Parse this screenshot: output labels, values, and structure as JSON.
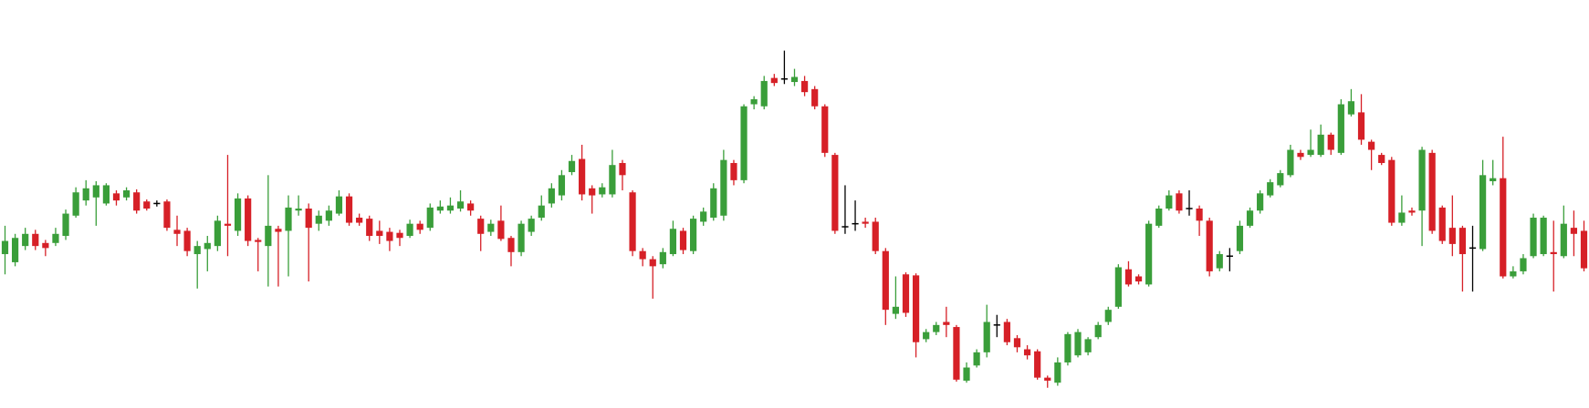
{
  "chart_data": {
    "type": "candlestick",
    "up_color": "#3a9e3a",
    "down_color": "#d62027",
    "flat_color": "#000000",
    "ylim": [
      0,
      403
    ],
    "open": [
      152,
      144,
      160,
      172,
      163,
      163,
      170,
      190,
      205,
      208,
      202,
      212,
      208,
      213,
      204,
      202,
      204,
      176,
      175,
      152,
      157,
      160,
      182,
      175,
      207,
      166,
      160,
      177,
      175,
      195,
      197,
      182,
      185,
      192,
      209,
      188,
      187,
      175,
      174,
      173,
      170,
      182,
      178,
      195,
      195,
      197,
      202,
      187,
      174,
      185,
      168,
      154,
      174,
      188,
      202,
      210,
      233,
      246,
      217,
      211,
      211,
      242,
      213,
      155,
      147,
      142,
      152,
      175,
      155,
      184,
      188,
      190,
      242,
      225,
      300,
      298,
      326,
      325,
      322,
      323,
      315,
      298,
      250,
      179,
      182,
      184,
      184,
      155,
      93,
      132,
      131,
      68,
      75,
      85,
      80,
      27,
      42,
      55,
      82,
      85,
      69,
      58,
      56,
      30,
      25,
      45,
      52,
      55,
      70,
      85,
      100,
      137,
      130,
      122,
      180,
      197,
      212,
      197,
      197,
      185,
      138,
      150,
      155,
      180,
      195,
      210,
      220,
      230,
      252,
      250,
      250,
      270,
      252,
      290,
      292,
      263,
      250,
      245,
      183,
      195,
      195,
      252,
      198,
      178,
      178,
      158,
      157,
      224,
      227,
      130,
      135,
      150,
      152,
      154,
      150,
      178,
      175
    ],
    "high": [
      180,
      172,
      178,
      176,
      166,
      178,
      196,
      218,
      225,
      224,
      222,
      215,
      218,
      216,
      206,
      205,
      206,
      190,
      178,
      165,
      170,
      190,
      250,
      212,
      210,
      168,
      230,
      180,
      210,
      210,
      202,
      195,
      200,
      215,
      212,
      192,
      190,
      185,
      178,
      176,
      186,
      185,
      202,
      205,
      208,
      215,
      205,
      190,
      186,
      200,
      170,
      185,
      190,
      210,
      222,
      235,
      250,
      260,
      220,
      222,
      255,
      245,
      215,
      158,
      150,
      158,
      185,
      178,
      190,
      198,
      222,
      255,
      245,
      300,
      308,
      328,
      330,
      353,
      335,
      328,
      318,
      300,
      252,
      220,
      205,
      188,
      188,
      158,
      130,
      134,
      133,
      78,
      85,
      100,
      82,
      45,
      58,
      102,
      92,
      88,
      72,
      62,
      58,
      32,
      50,
      75,
      78,
      70,
      85,
      100,
      142,
      145,
      132,
      185,
      200,
      215,
      215,
      215,
      200,
      188,
      155,
      158,
      185,
      198,
      215,
      226,
      235,
      260,
      255,
      275,
      280,
      272,
      305,
      315,
      310,
      265,
      252,
      248,
      210,
      198,
      258,
      255,
      200,
      210,
      180,
      180,
      245,
      245,
      268,
      140,
      152,
      192,
      190,
      185,
      200,
      195,
      185
    ],
    "low": [
      132,
      140,
      156,
      156,
      150,
      160,
      166,
      188,
      200,
      180,
      200,
      200,
      205,
      192,
      195,
      199,
      175,
      160,
      150,
      118,
      135,
      155,
      150,
      170,
      160,
      135,
      120,
      120,
      130,
      190,
      125,
      175,
      180,
      190,
      180,
      180,
      165,
      162,
      155,
      160,
      168,
      172,
      175,
      192,
      192,
      194,
      190,
      155,
      170,
      165,
      140,
      150,
      170,
      185,
      198,
      205,
      230,
      205,
      192,
      208,
      208,
      215,
      150,
      140,
      108,
      138,
      150,
      152,
      152,
      180,
      185,
      185,
      220,
      222,
      295,
      295,
      318,
      320,
      318,
      308,
      295,
      248,
      172,
      172,
      175,
      178,
      152,
      82,
      88,
      90,
      50,
      65,
      72,
      70,
      26,
      25,
      40,
      50,
      70,
      62,
      55,
      48,
      28,
      20,
      22,
      42,
      50,
      52,
      68,
      82,
      98,
      120,
      122,
      120,
      178,
      195,
      192,
      190,
      170,
      130,
      135,
      135,
      152,
      178,
      192,
      208,
      218,
      228,
      245,
      248,
      248,
      250,
      250,
      288,
      260,
      235,
      240,
      180,
      180,
      190,
      160,
      172,
      162,
      150,
      115,
      115,
      155,
      220,
      128,
      128,
      132,
      148,
      150,
      115,
      148,
      150,
      135
    ],
    "close": [
      165,
      168,
      172,
      160,
      158,
      172,
      192,
      213,
      217,
      220,
      220,
      205,
      215,
      195,
      197,
      202,
      178,
      172,
      155,
      160,
      163,
      185,
      180,
      207,
      165,
      164,
      180,
      174,
      198,
      197,
      178,
      190,
      195,
      209,
      183,
      183,
      170,
      170,
      165,
      168,
      182,
      176,
      198,
      199,
      200,
      204,
      195,
      172,
      182,
      167,
      154,
      182,
      187,
      200,
      217,
      230,
      244,
      211,
      210,
      218,
      240,
      230,
      155,
      147,
      140,
      154,
      177,
      156,
      187,
      194,
      217,
      245,
      225,
      298,
      305,
      323,
      321,
      325,
      327,
      312,
      298,
      252,
      175,
      179,
      182,
      182,
      155,
      97,
      100,
      94,
      65,
      75,
      82,
      82,
      28,
      40,
      55,
      85,
      82,
      65,
      60,
      52,
      30,
      27,
      45,
      73,
      75,
      68,
      82,
      97,
      139,
      122,
      125,
      182,
      197,
      210,
      195,
      197,
      185,
      135,
      152,
      150,
      180,
      195,
      212,
      223,
      232,
      255,
      248,
      255,
      270,
      255,
      300,
      303,
      265,
      255,
      242,
      183,
      193,
      193,
      255,
      175,
      165,
      162,
      152,
      158,
      230,
      227,
      130,
      135,
      148,
      188,
      188,
      152,
      182,
      172,
      138
    ]
  }
}
